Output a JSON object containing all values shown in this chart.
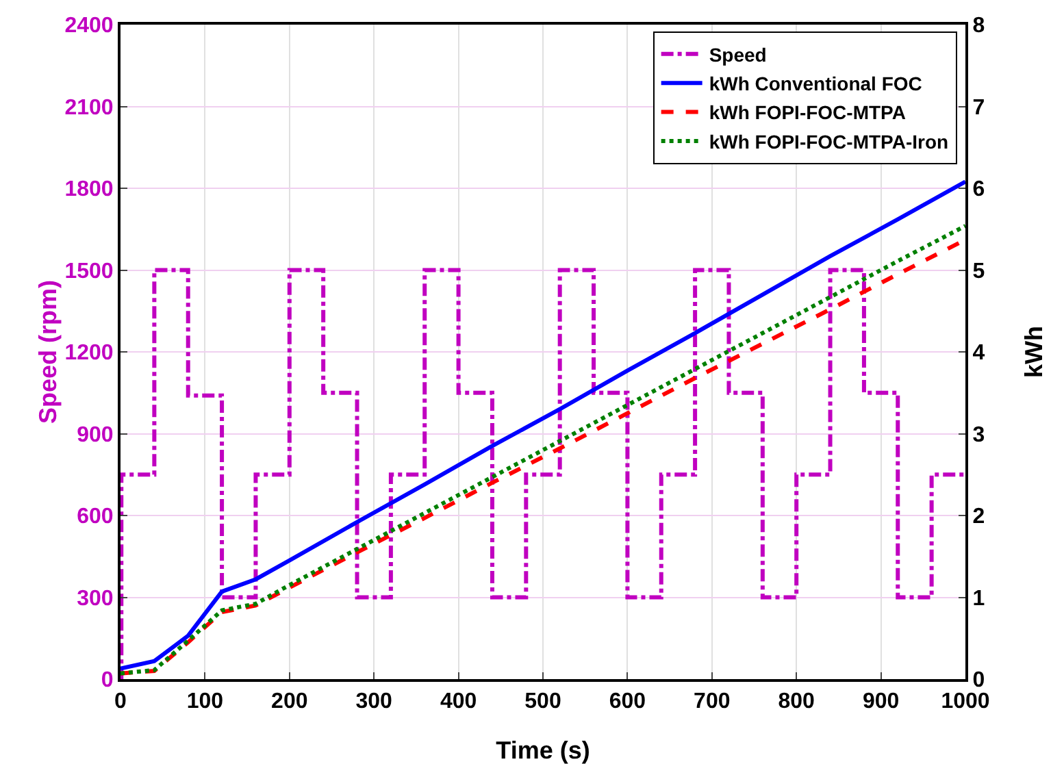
{
  "chart_data": {
    "type": "line",
    "xlabel": "Time (s)",
    "ylabel": "Speed (rpm)",
    "y2label": "kWh",
    "xlim": [
      0,
      1000
    ],
    "xticks": [
      0,
      100,
      200,
      300,
      400,
      500,
      600,
      700,
      800,
      900,
      1000
    ],
    "ylim": [
      0,
      2400
    ],
    "yticks": [
      0,
      300,
      600,
      900,
      1200,
      1500,
      1800,
      2100,
      2400
    ],
    "y2lim": [
      0,
      8
    ],
    "y2ticks": [
      0,
      1,
      2,
      3,
      4,
      5,
      6,
      7,
      8
    ],
    "grid": true,
    "legend": "top right",
    "series": [
      {
        "name": "Speed",
        "color": "#c000c0",
        "type": "step",
        "line_style": "dashdot",
        "x": [
          0,
          1,
          40,
          80,
          120,
          160,
          200,
          240,
          280,
          320,
          360,
          400,
          440,
          480,
          520,
          560,
          600,
          640,
          680,
          720,
          760,
          800,
          840,
          880,
          920,
          960,
          1000
        ],
        "values": [
          0,
          750,
          1500,
          1040,
          300,
          750,
          1500,
          1050,
          300,
          750,
          1500,
          1050,
          300,
          750,
          1500,
          1050,
          300,
          750,
          1500,
          1050,
          300,
          750,
          1500,
          1050,
          300,
          750,
          750
        ]
      },
      {
        "name": "kWh Conventional FOC",
        "color": "#0000ff",
        "line_style": "solid",
        "axis": "y2",
        "x": [
          0,
          40,
          80,
          120,
          160,
          200,
          280,
          360,
          440,
          520,
          600,
          680,
          760,
          840,
          920,
          1000
        ],
        "values": [
          0.13,
          0.22,
          0.53,
          1.07,
          1.22,
          1.45,
          1.92,
          2.38,
          2.85,
          3.3,
          3.77,
          4.23,
          4.7,
          5.17,
          5.62,
          6.08
        ]
      },
      {
        "name": "kWh FOPI-FOC-MTPA",
        "color": "#ff0000",
        "line_style": "dashed",
        "axis": "y2",
        "x": [
          0,
          40,
          80,
          120,
          160,
          200,
          280,
          360,
          440,
          520,
          600,
          680,
          760,
          840,
          920,
          1000
        ],
        "values": [
          0.07,
          0.1,
          0.45,
          0.82,
          0.9,
          1.12,
          1.55,
          1.97,
          2.4,
          2.82,
          3.25,
          3.68,
          4.1,
          4.52,
          4.95,
          5.37
        ]
      },
      {
        "name": "kWh FOPI-FOC-MTPA-Iron",
        "color": "#008000",
        "line_style": "dotted",
        "axis": "y2",
        "x": [
          0,
          40,
          80,
          120,
          160,
          200,
          280,
          360,
          440,
          520,
          600,
          680,
          760,
          840,
          920,
          1000
        ],
        "values": [
          0.07,
          0.11,
          0.47,
          0.84,
          0.92,
          1.15,
          1.59,
          2.03,
          2.47,
          2.91,
          3.35,
          3.79,
          4.23,
          4.67,
          5.11,
          5.54
        ]
      }
    ]
  }
}
